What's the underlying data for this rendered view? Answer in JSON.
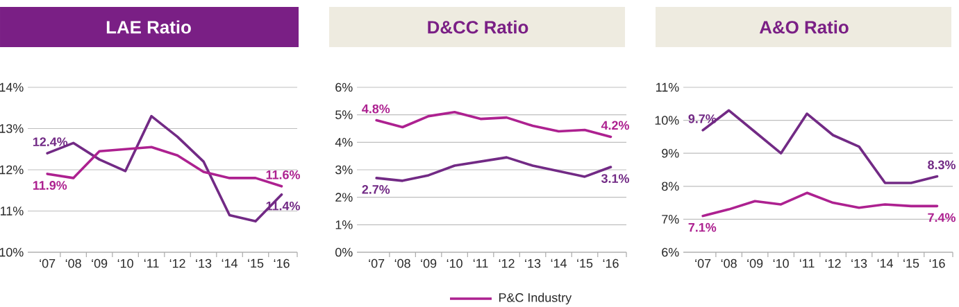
{
  "chart_data": [
    {
      "type": "line",
      "title": "LAE Ratio",
      "categories": [
        "‘07",
        "‘08",
        "‘09",
        "‘10",
        "‘11",
        "‘12",
        "‘13",
        "‘14",
        "‘15",
        "‘16"
      ],
      "series": [
        {
          "color": "#722a85",
          "values": [
            12.4,
            12.65,
            12.25,
            11.97,
            13.3,
            12.8,
            12.2,
            10.9,
            10.75,
            11.4
          ],
          "value_labels": [
            "12.4%",
            null,
            null,
            null,
            null,
            null,
            null,
            null,
            null,
            "11.4%"
          ]
        },
        {
          "color": "#ad2190",
          "values": [
            11.9,
            11.8,
            12.45,
            12.5,
            12.55,
            12.35,
            11.95,
            11.8,
            11.8,
            11.6
          ],
          "value_labels": [
            "11.9%",
            null,
            null,
            null,
            null,
            null,
            null,
            null,
            null,
            "11.6%"
          ]
        }
      ],
      "ylim": [
        10,
        14
      ],
      "yticks": [
        {
          "value": 10,
          "label": "10%"
        },
        {
          "value": 11,
          "label": "11%"
        },
        {
          "value": 12,
          "label": "12%"
        },
        {
          "value": 13,
          "label": "13%"
        },
        {
          "value": 14,
          "label": "14%"
        }
      ],
      "grid": "y"
    },
    {
      "type": "line",
      "title": "D&CC Ratio",
      "categories": [
        "‘07",
        "‘08",
        "‘09",
        "‘10",
        "‘11",
        "‘12",
        "‘13",
        "‘14",
        "‘15",
        "‘16"
      ],
      "series": [
        {
          "color": "#722a85",
          "values": [
            2.7,
            2.6,
            2.8,
            3.15,
            3.3,
            3.45,
            3.15,
            2.95,
            2.75,
            3.1
          ],
          "value_labels": [
            "2.7%",
            null,
            null,
            null,
            null,
            null,
            null,
            null,
            null,
            "3.1%"
          ]
        },
        {
          "name": "P&C Industry",
          "color": "#ad2190",
          "values": [
            4.8,
            4.55,
            4.95,
            5.1,
            4.85,
            4.9,
            4.6,
            4.4,
            4.45,
            4.2
          ],
          "value_labels": [
            "4.8%",
            null,
            null,
            null,
            null,
            null,
            null,
            null,
            null,
            "4.2%"
          ]
        }
      ],
      "ylim": [
        0,
        6
      ],
      "yticks": [
        {
          "value": 0,
          "label": "0%"
        },
        {
          "value": 1,
          "label": "1%"
        },
        {
          "value": 2,
          "label": "2%"
        },
        {
          "value": 3,
          "label": "3%"
        },
        {
          "value": 4,
          "label": "4%"
        },
        {
          "value": 5,
          "label": "5%"
        },
        {
          "value": 6,
          "label": "6%"
        }
      ],
      "grid": "y",
      "legend": "bottom"
    },
    {
      "type": "line",
      "title": "A&O Ratio",
      "categories": [
        "‘07",
        "‘08",
        "‘09",
        "‘10",
        "‘11",
        "‘12",
        "‘13",
        "‘14",
        "‘15",
        "‘16"
      ],
      "series": [
        {
          "color": "#722a85",
          "values": [
            9.7,
            10.3,
            9.65,
            9.0,
            10.2,
            9.55,
            9.2,
            8.1,
            8.1,
            8.3
          ],
          "value_labels": [
            "9.7%",
            null,
            null,
            null,
            null,
            null,
            null,
            null,
            null,
            "8.3%"
          ]
        },
        {
          "color": "#ad2190",
          "values": [
            7.1,
            7.3,
            7.55,
            7.45,
            7.8,
            7.5,
            7.35,
            7.45,
            7.4,
            7.4
          ],
          "value_labels": [
            "7.1%",
            null,
            null,
            null,
            null,
            null,
            null,
            null,
            null,
            "7.4%"
          ]
        }
      ],
      "ylim": [
        6,
        11
      ],
      "yticks": [
        {
          "value": 6,
          "label": "6%"
        },
        {
          "value": 7,
          "label": "7%"
        },
        {
          "value": 8,
          "label": "8%"
        },
        {
          "value": 9,
          "label": "9%"
        },
        {
          "value": 10,
          "label": "10%"
        },
        {
          "value": 11,
          "label": "11%"
        }
      ],
      "grid": "y"
    }
  ]
}
